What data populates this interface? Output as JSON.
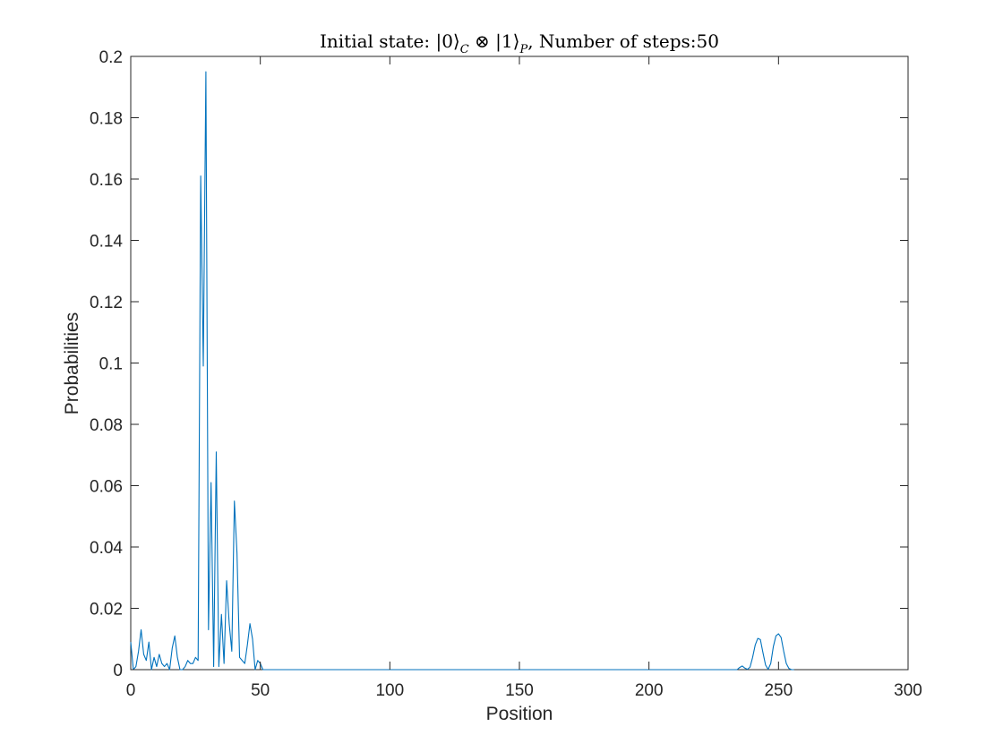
{
  "chart_data": {
    "type": "line",
    "title": {
      "prefix": "Initial state: ",
      "ket0": "|0⟩",
      "sub0": "C",
      "otimes": " ⊗ ",
      "ket1": "|1⟩",
      "sub1": "P",
      "suffix": ", Number of steps:50"
    },
    "xlabel": "Position",
    "ylabel": "Probabilities",
    "xlim": [
      0,
      300
    ],
    "ylim": [
      0,
      0.2
    ],
    "xticks": [
      0,
      50,
      100,
      150,
      200,
      250,
      300
    ],
    "xtick_labels": [
      "0",
      "50",
      "100",
      "150",
      "200",
      "250",
      "300"
    ],
    "yticks": [
      0,
      0.02,
      0.04,
      0.06,
      0.08,
      0.1,
      0.12,
      0.14,
      0.16,
      0.18,
      0.2
    ],
    "ytick_labels": [
      "0",
      "0.02",
      "0.04",
      "0.06",
      "0.08",
      "0.1",
      "0.12",
      "0.14",
      "0.16",
      "0.18",
      "0.2"
    ],
    "grid": false,
    "series": [
      {
        "name": "probability",
        "color": "#0072BD",
        "x": [
          0,
          1,
          2,
          3,
          4,
          5,
          6,
          7,
          8,
          9,
          10,
          11,
          12,
          13,
          14,
          15,
          16,
          17,
          18,
          19,
          20,
          21,
          22,
          23,
          24,
          25,
          26,
          27,
          28,
          29,
          30,
          31,
          32,
          33,
          34,
          35,
          36,
          37,
          38,
          39,
          40,
          41,
          42,
          43,
          44,
          45,
          46,
          47,
          48,
          49,
          50,
          51,
          60,
          80,
          100,
          120,
          140,
          160,
          180,
          200,
          220,
          230,
          234,
          235,
          236,
          237,
          238,
          239,
          240,
          241,
          242,
          243,
          244,
          245,
          246,
          247,
          248,
          249,
          250,
          251,
          252,
          253,
          254,
          255,
          256
        ],
        "values": [
          0.009,
          0.0,
          0.001,
          0.006,
          0.013,
          0.005,
          0.003,
          0.009,
          0.0,
          0.004,
          0.001,
          0.005,
          0.002,
          0.001,
          0.002,
          0.0,
          0.007,
          0.011,
          0.004,
          0.0,
          0.0,
          0.001,
          0.003,
          0.002,
          0.002,
          0.004,
          0.003,
          0.161,
          0.099,
          0.195,
          0.013,
          0.061,
          0.001,
          0.071,
          0.001,
          0.018,
          0.002,
          0.029,
          0.015,
          0.006,
          0.055,
          0.038,
          0.004,
          0.003,
          0.002,
          0.008,
          0.015,
          0.01,
          0.0,
          0.003,
          0.002,
          0.0,
          0.0,
          0.0,
          0.0,
          0.0,
          0.0,
          0.0,
          0.0,
          0.0,
          0.0,
          0.0,
          0.0,
          0.0007,
          0.0012,
          0.0005,
          0.0001,
          0.0008,
          0.004,
          0.008,
          0.0102,
          0.0098,
          0.0055,
          0.0015,
          0.0001,
          0.002,
          0.0075,
          0.011,
          0.0117,
          0.0105,
          0.006,
          0.002,
          0.0004,
          0.0,
          0.0
        ]
      }
    ]
  }
}
